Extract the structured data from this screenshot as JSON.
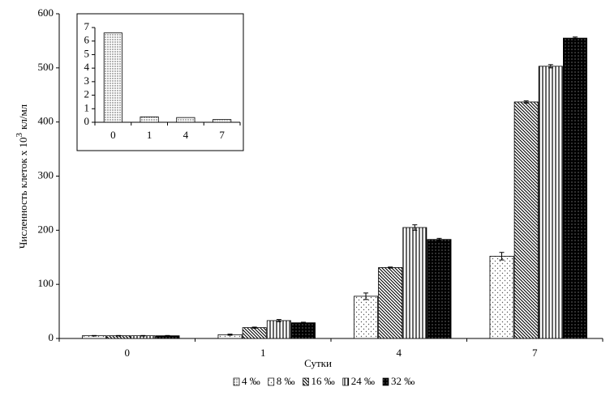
{
  "chart_data": [
    {
      "type": "bar",
      "ylabel": [
        "Численность клеток х 10",
        "3",
        "кл/мл"
      ],
      "xlabel": "Сутки",
      "categories": [
        "0",
        "1",
        "4",
        "7"
      ],
      "ylim": [
        0,
        600
      ],
      "yticks": [
        0,
        100,
        200,
        300,
        400,
        500,
        600
      ],
      "series": [
        {
          "name": "8 ‰",
          "pattern": "dots-sparse",
          "values": [
            5,
            7,
            78,
            152
          ],
          "errors": [
            0.5,
            1,
            6,
            7
          ]
        },
        {
          "name": "16 ‰",
          "pattern": "diag",
          "values": [
            5,
            20,
            131,
            437
          ],
          "errors": [
            0.5,
            1,
            1,
            2
          ]
        },
        {
          "name": "24 ‰",
          "pattern": "vert",
          "values": [
            5,
            33,
            205,
            503
          ],
          "errors": [
            0.5,
            2,
            5,
            3
          ]
        },
        {
          "name": "32  ‰",
          "pattern": "black-dots",
          "values": [
            5,
            29,
            183,
            555
          ],
          "errors": [
            0.5,
            1,
            2,
            2
          ]
        }
      ]
    },
    {
      "type": "bar",
      "categories": [
        "0",
        "1",
        "4",
        "7"
      ],
      "ylim": [
        0,
        7
      ],
      "yticks": [
        0,
        1,
        2,
        3,
        4,
        5,
        6,
        7
      ],
      "series": [
        {
          "name": "4 ‰",
          "pattern": "dots-dense",
          "values": [
            6.6,
            0.4,
            0.35,
            0.2
          ]
        }
      ]
    }
  ]
}
